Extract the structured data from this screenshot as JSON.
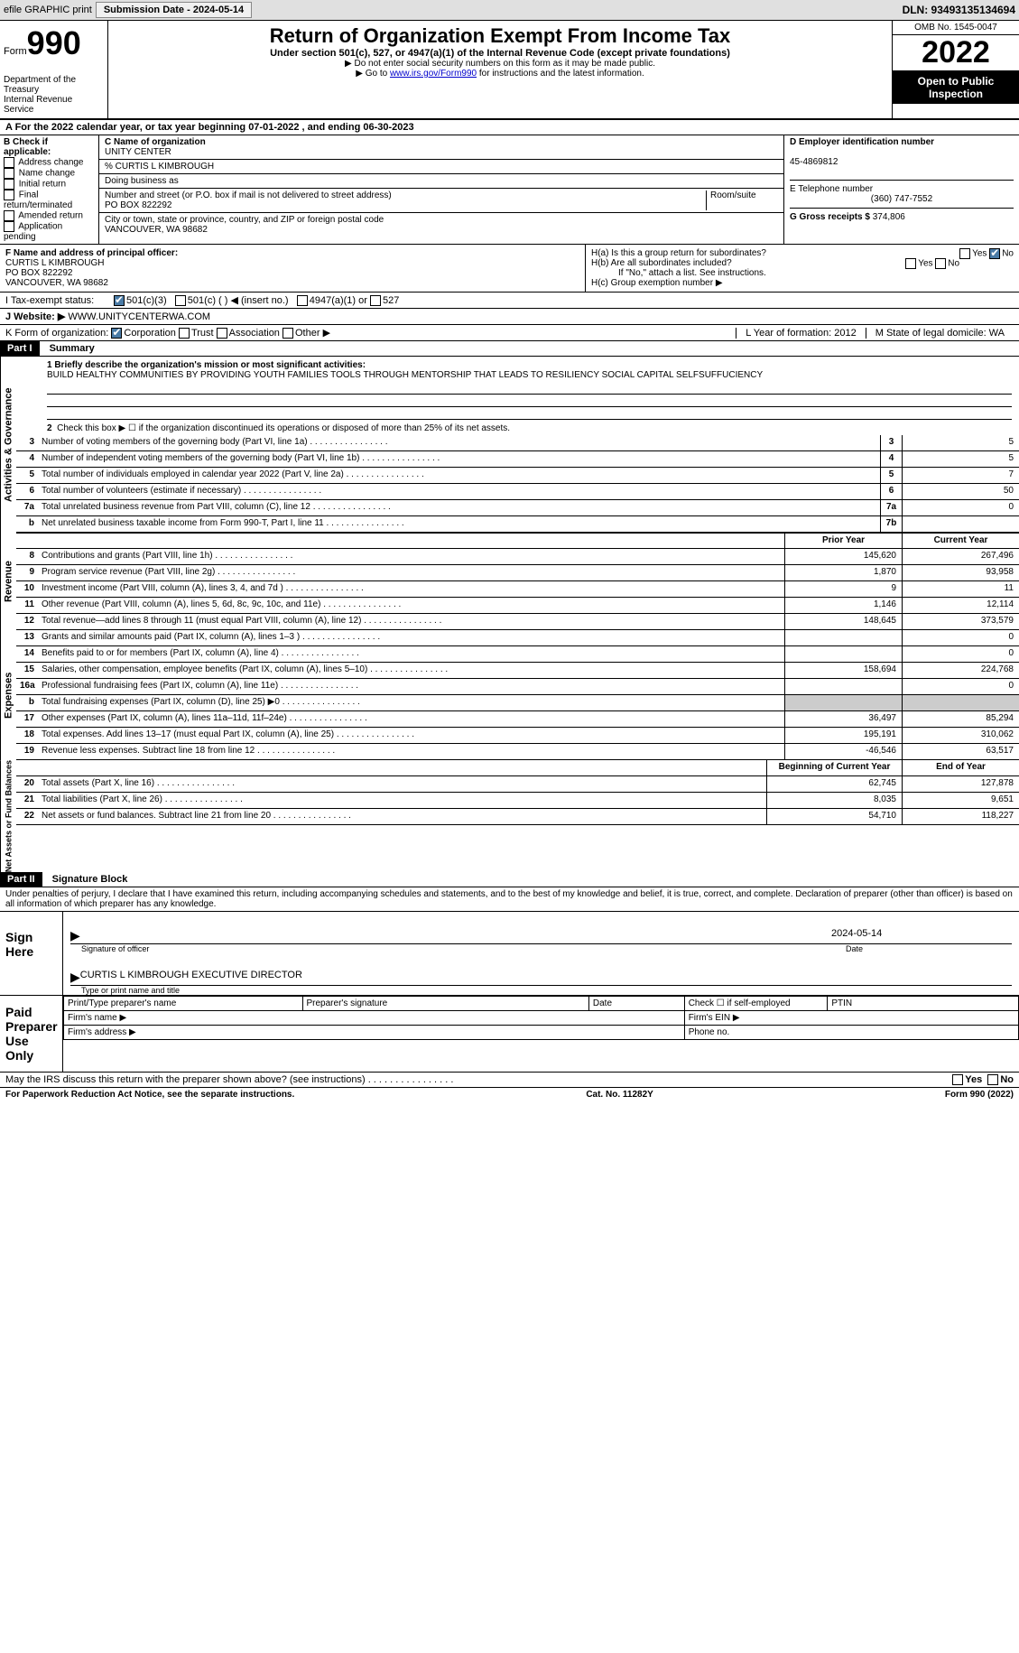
{
  "topbar": {
    "efile": "efile GRAPHIC print",
    "submission": "Submission Date - 2024-05-14",
    "dln": "DLN: 93493135134694"
  },
  "header": {
    "form_word": "Form",
    "form_num": "990",
    "title": "Return of Organization Exempt From Income Tax",
    "sub1": "Under section 501(c), 527, or 4947(a)(1) of the Internal Revenue Code (except private foundations)",
    "sub2": "▶ Do not enter social security numbers on this form as it may be made public.",
    "sub3_pre": "▶ Go to ",
    "sub3_link": "www.irs.gov/Form990",
    "sub3_post": " for instructions and the latest information.",
    "dept": "Department of the Treasury\nInternal Revenue Service",
    "omb": "OMB No. 1545-0047",
    "year": "2022",
    "inspect": "Open to Public Inspection"
  },
  "rowA": "A For the 2022 calendar year, or tax year beginning 07-01-2022    , and ending 06-30-2023",
  "boxB": {
    "title": "B Check if applicable:",
    "items": [
      "Address change",
      "Name change",
      "Initial return",
      "Final return/terminated",
      "Amended return",
      "Application pending"
    ]
  },
  "boxC": {
    "label_name": "C Name of organization",
    "name": "UNITY CENTER",
    "care": "% CURTIS L KIMBROUGH",
    "dba_label": "Doing business as",
    "addr_label": "Number and street (or P.O. box if mail is not delivered to street address)",
    "room": "Room/suite",
    "addr": "PO BOX 822292",
    "city_label": "City or town, state or province, country, and ZIP or foreign postal code",
    "city": "VANCOUVER, WA  98682"
  },
  "boxD": {
    "label": "D Employer identification number",
    "val": "45-4869812"
  },
  "boxE": {
    "label": "E Telephone number",
    "val": "(360) 747-7552"
  },
  "boxG": {
    "label": "G Gross receipts $",
    "val": "374,806"
  },
  "boxF": {
    "label": "F Name and address of principal officer:",
    "l1": "CURTIS L KIMBROUGH",
    "l2": "PO BOX 822292",
    "l3": "VANCOUVER, WA  98682"
  },
  "boxH": {
    "a": "H(a)  Is this a group return for subordinates?",
    "b": "H(b)  Are all subordinates included?",
    "note": "If \"No,\" attach a list. See instructions.",
    "c": "H(c)  Group exemption number ▶"
  },
  "rowI": {
    "label": "I   Tax-exempt status:",
    "o1": "501(c)(3)",
    "o2": "501(c) (  ) ◀ (insert no.)",
    "o3": "4947(a)(1) or",
    "o4": "527"
  },
  "rowJ": {
    "label": "J   Website: ▶",
    "val": "WWW.UNITYCENTERWA.COM"
  },
  "rowK": {
    "label": "K Form of organization:",
    "opts": [
      "Corporation",
      "Trust",
      "Association",
      "Other ▶"
    ],
    "L": "L Year of formation: 2012",
    "M": "M State of legal domicile: WA"
  },
  "part1": {
    "num": "Part I",
    "title": "Summary"
  },
  "mission": {
    "label": "1  Briefly describe the organization's mission or most significant activities:",
    "text": "BUILD HEALTHY COMMUNITIES BY PROVIDING YOUTH FAMILIES TOOLS THROUGH MENTORSHIP THAT LEADS TO RESILIENCY SOCIAL CAPITAL SELFSUFFUCIENCY"
  },
  "line2": "Check this box ▶ ☐ if the organization discontinued its operations or disposed of more than 25% of its net assets.",
  "gov": {
    "vert": "Activities & Governance",
    "rows": [
      {
        "n": "3",
        "t": "Number of voting members of the governing body (Part VI, line 1a)",
        "box": "3",
        "v": "5"
      },
      {
        "n": "4",
        "t": "Number of independent voting members of the governing body (Part VI, line 1b)",
        "box": "4",
        "v": "5"
      },
      {
        "n": "5",
        "t": "Total number of individuals employed in calendar year 2022 (Part V, line 2a)",
        "box": "5",
        "v": "7"
      },
      {
        "n": "6",
        "t": "Total number of volunteers (estimate if necessary)",
        "box": "6",
        "v": "50"
      },
      {
        "n": "7a",
        "t": "Total unrelated business revenue from Part VIII, column (C), line 12",
        "box": "7a",
        "v": "0"
      },
      {
        "n": "b",
        "t": "Net unrelated business taxable income from Form 990-T, Part I, line 11",
        "box": "7b",
        "v": ""
      }
    ]
  },
  "rev": {
    "vert": "Revenue",
    "head_prior": "Prior Year",
    "head_curr": "Current Year",
    "rows": [
      {
        "n": "8",
        "t": "Contributions and grants (Part VIII, line 1h)",
        "p": "145,620",
        "c": "267,496"
      },
      {
        "n": "9",
        "t": "Program service revenue (Part VIII, line 2g)",
        "p": "1,870",
        "c": "93,958"
      },
      {
        "n": "10",
        "t": "Investment income (Part VIII, column (A), lines 3, 4, and 7d )",
        "p": "9",
        "c": "11"
      },
      {
        "n": "11",
        "t": "Other revenue (Part VIII, column (A), lines 5, 6d, 8c, 9c, 10c, and 11e)",
        "p": "1,146",
        "c": "12,114"
      },
      {
        "n": "12",
        "t": "Total revenue—add lines 8 through 11 (must equal Part VIII, column (A), line 12)",
        "p": "148,645",
        "c": "373,579"
      }
    ]
  },
  "exp": {
    "vert": "Expenses",
    "rows": [
      {
        "n": "13",
        "t": "Grants and similar amounts paid (Part IX, column (A), lines 1–3 )",
        "p": "",
        "c": "0"
      },
      {
        "n": "14",
        "t": "Benefits paid to or for members (Part IX, column (A), line 4)",
        "p": "",
        "c": "0"
      },
      {
        "n": "15",
        "t": "Salaries, other compensation, employee benefits (Part IX, column (A), lines 5–10)",
        "p": "158,694",
        "c": "224,768"
      },
      {
        "n": "16a",
        "t": "Professional fundraising fees (Part IX, column (A), line 11e)",
        "p": "",
        "c": "0"
      },
      {
        "n": "b",
        "t": "Total fundraising expenses (Part IX, column (D), line 25) ▶0",
        "p": "shade",
        "c": "shade"
      },
      {
        "n": "17",
        "t": "Other expenses (Part IX, column (A), lines 11a–11d, 11f–24e)",
        "p": "36,497",
        "c": "85,294"
      },
      {
        "n": "18",
        "t": "Total expenses. Add lines 13–17 (must equal Part IX, column (A), line 25)",
        "p": "195,191",
        "c": "310,062"
      },
      {
        "n": "19",
        "t": "Revenue less expenses. Subtract line 18 from line 12",
        "p": "-46,546",
        "c": "63,517"
      }
    ]
  },
  "net": {
    "vert": "Net Assets or Fund Balances",
    "head_beg": "Beginning of Current Year",
    "head_end": "End of Year",
    "rows": [
      {
        "n": "20",
        "t": "Total assets (Part X, line 16)",
        "p": "62,745",
        "c": "127,878"
      },
      {
        "n": "21",
        "t": "Total liabilities (Part X, line 26)",
        "p": "8,035",
        "c": "9,651"
      },
      {
        "n": "22",
        "t": "Net assets or fund balances. Subtract line 21 from line 20",
        "p": "54,710",
        "c": "118,227"
      }
    ]
  },
  "part2": {
    "num": "Part II",
    "title": "Signature Block"
  },
  "penalty": "Under penalties of perjury, I declare that I have examined this return, including accompanying schedules and statements, and to the best of my knowledge and belief, it is true, correct, and complete. Declaration of preparer (other than officer) is based on all information of which preparer has any knowledge.",
  "sign": {
    "left": "Sign Here",
    "sig_label": "Signature of officer",
    "date": "2024-05-14",
    "date_label": "Date",
    "name": "CURTIS L KIMBROUGH  EXECUTIVE DIRECTOR",
    "name_label": "Type or print name and title"
  },
  "prep": {
    "left": "Paid Preparer Use Only",
    "h1": "Print/Type preparer's name",
    "h2": "Preparer's signature",
    "h3": "Date",
    "h4": "Check ☐ if self-employed",
    "h5": "PTIN",
    "firm_name": "Firm's name   ▶",
    "firm_ein": "Firm's EIN ▶",
    "firm_addr": "Firm's address ▶",
    "phone": "Phone no."
  },
  "discuss": "May the IRS discuss this return with the preparer shown above? (see instructions)",
  "yes": "Yes",
  "no": "No",
  "footer": {
    "l": "For Paperwork Reduction Act Notice, see the separate instructions.",
    "m": "Cat. No. 11282Y",
    "r": "Form 990 (2022)"
  }
}
